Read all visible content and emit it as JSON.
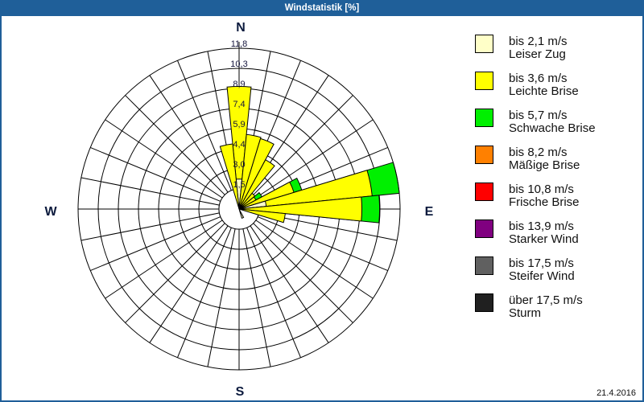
{
  "window": {
    "title": "Windstatistik [%]"
  },
  "compass": {
    "n": "N",
    "e": "E",
    "s": "S",
    "w": "W"
  },
  "legend": {
    "items": [
      {
        "speed": "bis 2,1 m/s",
        "name": "Leiser Zug",
        "color": "#ffffc8"
      },
      {
        "speed": "bis 3,6 m/s",
        "name": "Leichte Brise",
        "color": "#ffff00"
      },
      {
        "speed": "bis 5,7 m/s",
        "name": "Schwache Brise",
        "color": "#00f000"
      },
      {
        "speed": "bis 8,2 m/s",
        "name": "Mäßige Brise",
        "color": "#ff8000"
      },
      {
        "speed": "bis 10,8 m/s",
        "name": "Frische Brise",
        "color": "#ff0000"
      },
      {
        "speed": "bis 13,9 m/s",
        "name": "Starker Wind",
        "color": "#800080"
      },
      {
        "speed": "bis 17,5 m/s",
        "name": "Steifer Wind",
        "color": "#606060"
      },
      {
        "speed": "über 17,5 m/s",
        "name": "Sturm",
        "color": "#202020"
      }
    ]
  },
  "footer": {
    "date": "21.4.2016"
  },
  "chart_data": {
    "type": "bar",
    "polar": true,
    "stacked": true,
    "title": "Windstatistik [%]",
    "unit": "%",
    "compass_labels": [
      "N",
      "E",
      "S",
      "W"
    ],
    "directions_deg": [
      0,
      11.25,
      22.5,
      33.75,
      45,
      56.25,
      67.5,
      78.75,
      90,
      101.25,
      112.5,
      123.75,
      135,
      146.25,
      157.5,
      168.75,
      180,
      191.25,
      202.5,
      213.75,
      225,
      236.25,
      247.5,
      258.75,
      270,
      281.25,
      292.5,
      303.75,
      315,
      326.25,
      337.5,
      348.75
    ],
    "radial_ticks": [
      "1,5",
      "3,0",
      "4,4",
      "5,9",
      "7,4",
      "8,9",
      "10,3",
      "11,8"
    ],
    "radial_tick_values": [
      1.5,
      3.0,
      4.4,
      5.9,
      7.4,
      8.9,
      10.3,
      11.8
    ],
    "rmax": 11.8,
    "grid": true,
    "legend_position": "right",
    "series": [
      {
        "name": "bis 2,1 m/s Leiser Zug",
        "color": "#ffffc8",
        "values": [
          2.2,
          0,
          0,
          0,
          0,
          0,
          0,
          2.0,
          0,
          0,
          0,
          0,
          0,
          0,
          0.7,
          0,
          0,
          0,
          0,
          0,
          0,
          0,
          0,
          0,
          0,
          0,
          0,
          0,
          0,
          0,
          0,
          0
        ]
      },
      {
        "name": "bis 3,6 m/s Leichte Brise",
        "color": "#ffff00",
        "values": [
          6.8,
          5.5,
          5.4,
          4.1,
          1.5,
          1.4,
          4.2,
          7.8,
          9.0,
          3.4,
          0,
          0,
          0,
          0,
          0,
          0,
          0,
          0,
          0,
          0,
          0,
          0,
          0,
          0,
          0,
          0,
          0,
          0,
          0,
          0,
          0,
          4.8
        ]
      },
      {
        "name": "bis 5,7 m/s Schwache Brise",
        "color": "#00f000",
        "values": [
          0,
          0,
          0,
          0,
          0,
          0.5,
          0.6,
          2.0,
          1.3,
          0,
          0,
          0,
          0,
          0,
          0,
          0,
          0,
          0,
          0,
          0,
          0,
          0,
          0,
          0,
          0,
          0,
          0,
          0,
          0,
          0,
          0,
          0
        ]
      },
      {
        "name": "bis 8,2 m/s Mäßige Brise",
        "color": "#ff8000",
        "values": [
          0,
          0,
          0,
          0,
          0,
          0,
          0,
          0,
          0,
          0,
          0,
          0,
          0,
          0,
          0,
          0,
          0,
          0,
          0,
          0,
          0,
          0,
          0,
          0,
          0,
          0,
          0,
          0,
          0,
          0,
          0,
          0
        ]
      },
      {
        "name": "bis 10,8 m/s Frische Brise",
        "color": "#ff0000",
        "values": [
          0,
          0,
          0,
          0,
          0,
          0,
          0,
          0,
          0,
          0,
          0,
          0,
          0,
          0,
          0,
          0,
          0,
          0,
          0,
          0,
          0,
          0,
          0,
          0,
          0,
          0,
          0,
          0,
          0,
          0,
          0,
          0
        ]
      },
      {
        "name": "bis 13,9 m/s Starker Wind",
        "color": "#800080",
        "values": [
          0,
          0,
          0,
          0,
          0,
          0,
          0,
          0,
          0,
          0,
          0,
          0,
          0,
          0,
          0,
          0,
          0,
          0,
          0,
          0,
          0,
          0,
          0,
          0,
          0,
          0,
          0,
          0,
          0,
          0,
          0,
          0
        ]
      },
      {
        "name": "bis 17,5 m/s Steifer Wind",
        "color": "#606060",
        "values": [
          0,
          0,
          0,
          0,
          0,
          0,
          0,
          0,
          0,
          0,
          0,
          0,
          0,
          0,
          0,
          0,
          0,
          0,
          0,
          0,
          0,
          0,
          0,
          0,
          0,
          0,
          0,
          0,
          0,
          0,
          0,
          0
        ]
      },
      {
        "name": "über 17,5 m/s Sturm",
        "color": "#202020",
        "values": [
          0,
          0,
          0,
          0,
          0,
          0,
          0,
          0,
          0,
          0,
          0,
          0,
          0,
          0,
          0,
          0,
          0,
          0,
          0,
          0,
          0,
          0,
          0,
          0,
          0,
          0,
          0,
          0,
          0,
          0,
          0,
          0
        ]
      }
    ]
  }
}
